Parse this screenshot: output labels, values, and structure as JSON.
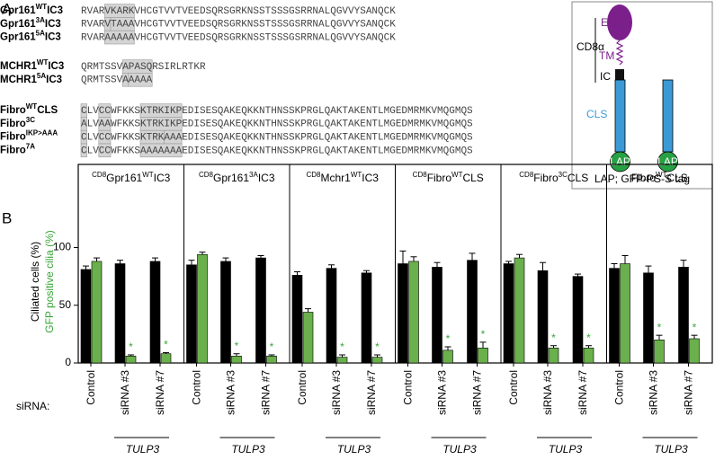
{
  "panel_a": {
    "label": "A",
    "groups": [
      {
        "rows": [
          {
            "label": {
              "main": "Gpr161",
              "sup": "WT",
              "suffix": "IC3"
            },
            "segments": [
              {
                "text": "RVAR"
              },
              {
                "text": "VKARK",
                "box": true
              },
              {
                "text": "VHCGTVVTVEEDSQRSGRKNSSTSSSGSRRNALQGVVYSANQCK"
              }
            ]
          },
          {
            "label": {
              "main": "Gpr161",
              "sup": "3A",
              "suffix": "IC3"
            },
            "segments": [
              {
                "text": "RVAR"
              },
              {
                "text": "V",
                "box": true
              },
              {
                "text": "TAAA",
                "box": true,
                "color": "#e8343a"
              },
              {
                "text": "VHCGTVVTVEEDSQRSGRKNSSTSSSGSRRNALQGVVYSANQCK"
              }
            ]
          },
          {
            "label": {
              "main": "Gpr161",
              "sup": "5A",
              "suffix": "IC3"
            },
            "segments": [
              {
                "text": "RVAR"
              },
              {
                "text": "AAAAA",
                "box": true,
                "color": "#e8343a"
              },
              {
                "text": "VHCGTVVTVEEDSQRSGRKNSSTSSSGSRRNALQGVVYSANQCK"
              }
            ]
          }
        ]
      },
      {
        "rows": [
          {
            "label": {
              "main": "MCHR1",
              "sup": "WT",
              "suffix": "IC3"
            },
            "segments": [
              {
                "text": "QRMTSSV"
              },
              {
                "text": "APASQ",
                "box": true
              },
              {
                "text": "RSIRLRTKR"
              }
            ]
          },
          {
            "label": {
              "main": "MCHR1",
              "sup": "5A",
              "suffix": "IC3"
            },
            "segments": [
              {
                "text": "QRMTSSV"
              },
              {
                "text": "A",
                "box": true
              },
              {
                "text": "AAAA",
                "box": true,
                "color": "#e8343a"
              }
            ]
          }
        ]
      },
      {
        "rows": [
          {
            "label": {
              "main": "Fibro",
              "sup": "WT",
              "suffix": "CLS"
            },
            "segments": [
              {
                "text": "C",
                "box": true
              },
              {
                "text": "LV"
              },
              {
                "text": "CC",
                "box": true
              },
              {
                "text": "WFKKS"
              },
              {
                "text": "KTRKIKP",
                "box": true
              },
              {
                "text": "EDISESQAKEQKKNTHNSSKPRGLQAKTAKENTLMGEDMRMKVMQGMQS"
              }
            ]
          },
          {
            "label": {
              "main": "Fibro",
              "sup": "3C"
            },
            "segments": [
              {
                "text": "A",
                "box": true,
                "color": "#e8343a"
              },
              {
                "text": "LV"
              },
              {
                "text": "AA",
                "box": true,
                "color": "#e8343a"
              },
              {
                "text": "WFKKS"
              },
              {
                "text": "KTRKIKP",
                "box": true
              },
              {
                "text": "EDISESQAKEQKKNTHNSSKPRGLQAKTAKENTLMGEDMRMKVMQGMQS"
              }
            ]
          },
          {
            "label": {
              "main": "Fibro",
              "sup": "IKP>AAA"
            },
            "segments": [
              {
                "text": "C",
                "box": true
              },
              {
                "text": "LV"
              },
              {
                "text": "CC",
                "box": true
              },
              {
                "text": "WFKKS"
              },
              {
                "text": "KTRK",
                "box": true
              },
              {
                "text": "AAA",
                "box": true,
                "color": "#e8343a"
              },
              {
                "text": "EDISESQAKEQKKNTHNSSKPRGLQAKTAKENTLMGEDMRMKVMQGMQS"
              }
            ]
          },
          {
            "label": {
              "main": "Fibro",
              "sup": "7A"
            },
            "segments": [
              {
                "text": "C",
                "box": true
              },
              {
                "text": "LV"
              },
              {
                "text": "CC",
                "box": true
              },
              {
                "text": "WFKKS"
              },
              {
                "text": "AAAAAAA",
                "box": true,
                "color": "#e8343a"
              },
              {
                "text": "EDISESQAKEQKKNTHNSSKPRGLQAKTAKENTLMGEDMRMKVMQGMQS"
              }
            ]
          }
        ]
      }
    ],
    "diagram": {
      "cd8": "CD8α",
      "ec": "EC",
      "tm": "TM",
      "ic": "IC",
      "cls": "CLS",
      "lap": "LAP",
      "tag": "LAP; GFP-PS-S tag"
    }
  },
  "panel_b": {
    "label": "B",
    "ylabel": "Ciliated cells (%)",
    "ylabel_color": "#000000",
    "y2label": "GFP positive cilia (%)",
    "y2label_color": "#3aa63a",
    "row_label": "siRNA:",
    "group_label": "TULP3"
  },
  "chart_data": [
    {
      "type": "bar",
      "title": {
        "pre": "CD8",
        "main": "Gpr161",
        "sup": "WT",
        "suffix": "IC3"
      },
      "categories": [
        "Control",
        "siRNA #3",
        "siRNA #7"
      ],
      "series": [
        {
          "color": "#000000",
          "values": [
            81,
            86,
            88
          ],
          "errors": [
            3,
            3,
            3
          ]
        },
        {
          "color": "#6ab04c",
          "values": [
            88,
            6,
            8
          ],
          "errors": [
            3,
            1,
            1
          ]
        }
      ],
      "annotations": [
        null,
        "*",
        "*"
      ],
      "ylim": [
        0,
        172
      ],
      "yticks": [
        0,
        50,
        100
      ]
    },
    {
      "type": "bar",
      "title": {
        "pre": "CD8",
        "main": "Gpr161",
        "sup": "3A",
        "suffix": "IC3"
      },
      "categories": [
        "Control",
        "siRNA #3",
        "siRNA #7"
      ],
      "series": [
        {
          "color": "#000000",
          "values": [
            85,
            88,
            91
          ],
          "errors": [
            4,
            3,
            2
          ]
        },
        {
          "color": "#6ab04c",
          "values": [
            94,
            6,
            6
          ],
          "errors": [
            2,
            2,
            1
          ]
        }
      ],
      "annotations": [
        null,
        "*",
        "*"
      ],
      "ylim": [
        0,
        172
      ]
    },
    {
      "type": "bar",
      "title": {
        "pre": "CD8",
        "main": "Mchr1",
        "sup": "WT",
        "suffix": "IC3"
      },
      "categories": [
        "Control",
        "siRNA #3",
        "siRNA #7"
      ],
      "series": [
        {
          "color": "#000000",
          "values": [
            76,
            82,
            78
          ],
          "errors": [
            3,
            3,
            2
          ]
        },
        {
          "color": "#6ab04c",
          "values": [
            44,
            5,
            5
          ],
          "errors": [
            3,
            2,
            2
          ]
        }
      ],
      "annotations": [
        null,
        "*",
        "*"
      ],
      "ylim": [
        0,
        172
      ]
    },
    {
      "type": "bar",
      "title": {
        "pre": "CD8",
        "main": "Fibro",
        "sup": "WT",
        "suffix": "CLS"
      },
      "categories": [
        "Control",
        "siRNA #3",
        "siRNA #7"
      ],
      "series": [
        {
          "color": "#000000",
          "values": [
            86,
            83,
            89
          ],
          "errors": [
            11,
            4,
            6
          ]
        },
        {
          "color": "#6ab04c",
          "values": [
            88,
            11,
            13
          ],
          "errors": [
            4,
            3,
            5
          ]
        }
      ],
      "annotations": [
        null,
        "*",
        "*"
      ],
      "ylim": [
        0,
        172
      ]
    },
    {
      "type": "bar",
      "title": {
        "pre": "CD8",
        "main": "Fibro",
        "sup": "3C",
        "suffix": "CLS"
      },
      "categories": [
        "Control",
        "siRNA #3",
        "siRNA #7"
      ],
      "series": [
        {
          "color": "#000000",
          "values": [
            86,
            80,
            75
          ],
          "errors": [
            2,
            7,
            2
          ]
        },
        {
          "color": "#6ab04c",
          "values": [
            91,
            13,
            13
          ],
          "errors": [
            3,
            2,
            2
          ]
        }
      ],
      "annotations": [
        null,
        "*",
        "*"
      ],
      "ylim": [
        0,
        172
      ]
    },
    {
      "type": "bar",
      "title": {
        "main": "Fibro",
        "sup": "WT",
        "suffix": "CLS"
      },
      "categories": [
        "Control",
        "siRNA #3",
        "siRNA #7"
      ],
      "series": [
        {
          "color": "#000000",
          "values": [
            82,
            78,
            83
          ],
          "errors": [
            4,
            6,
            6
          ]
        },
        {
          "color": "#6ab04c",
          "values": [
            86,
            20,
            21
          ],
          "errors": [
            7,
            4,
            3
          ]
        }
      ],
      "annotations": [
        null,
        "*",
        "*"
      ],
      "ylim": [
        0,
        172
      ]
    }
  ]
}
